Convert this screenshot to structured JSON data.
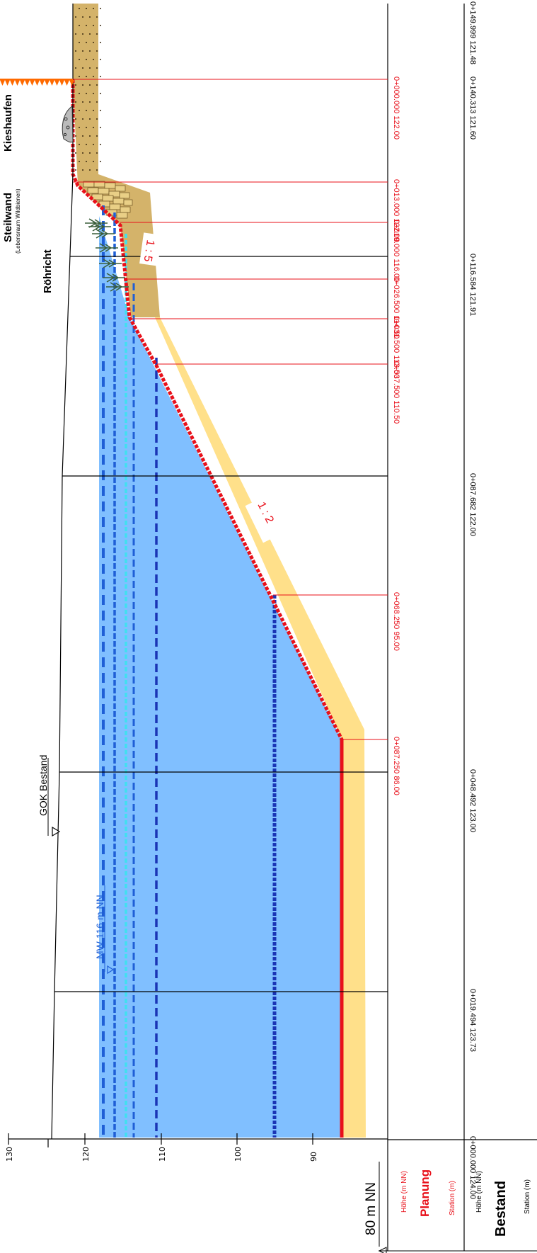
{
  "labels": {
    "kieshaufen": "Kieshaufen",
    "steilwand": "Steilwand",
    "steilwand_sub": "(Lebensraum Wildbienen)",
    "roehricht": "Röhricht",
    "gok": "GOK Bestand",
    "mw": "MW 116 m NN",
    "slope_upper": "1 : 5",
    "slope_lower": "1 : 2",
    "datum": "80 m NN"
  },
  "scale": {
    "ticks": [
      "130",
      "120",
      "110",
      "100",
      "90"
    ]
  },
  "table": {
    "planung": {
      "title": "Planung",
      "hoehe": "Höhe  (m NN)",
      "station": "Station (m)"
    },
    "bestand": {
      "title": "Bestand",
      "hoehe": "Höhe  (m NN)",
      "station": "Station (m)"
    }
  },
  "planung_points": [
    {
      "station": "0+000.000",
      "hoehe": "122.00"
    },
    {
      "station": "0+013.000",
      "hoehe": "122.00"
    },
    {
      "station": "0+019.000",
      "hoehe": "116.00"
    },
    {
      "station": "0+026.500",
      "hoehe": "114.50"
    },
    {
      "station": "0+031.500",
      "hoehe": "113.50"
    },
    {
      "station": "0+037.500",
      "hoehe": "110.50"
    },
    {
      "station": "0+068.250",
      "hoehe": "95.00"
    },
    {
      "station": "0+087.250",
      "hoehe": "86.00"
    }
  ],
  "bestand_points": [
    {
      "station": "0+149.999",
      "hoehe": "121.48"
    },
    {
      "station": "0+140.313",
      "hoehe": "121.60"
    },
    {
      "station": "0+116.584",
      "hoehe": "121.91"
    },
    {
      "station": "0+087.682",
      "hoehe": "122.00"
    },
    {
      "station": "0+048.492",
      "hoehe": "123.00"
    },
    {
      "station": "0+019.494",
      "hoehe": "123.73"
    },
    {
      "station": "0+000.000",
      "hoehe": "124.00"
    }
  ],
  "colors": {
    "water": "#80bfff",
    "fill_sand": "#ffe08a",
    "gravel": "#d4b36a",
    "planung_red": "#e8101a",
    "mw_blue": "#1f5fd6",
    "dark_blue": "#1a35b5",
    "cyan": "#40e0f0"
  }
}
